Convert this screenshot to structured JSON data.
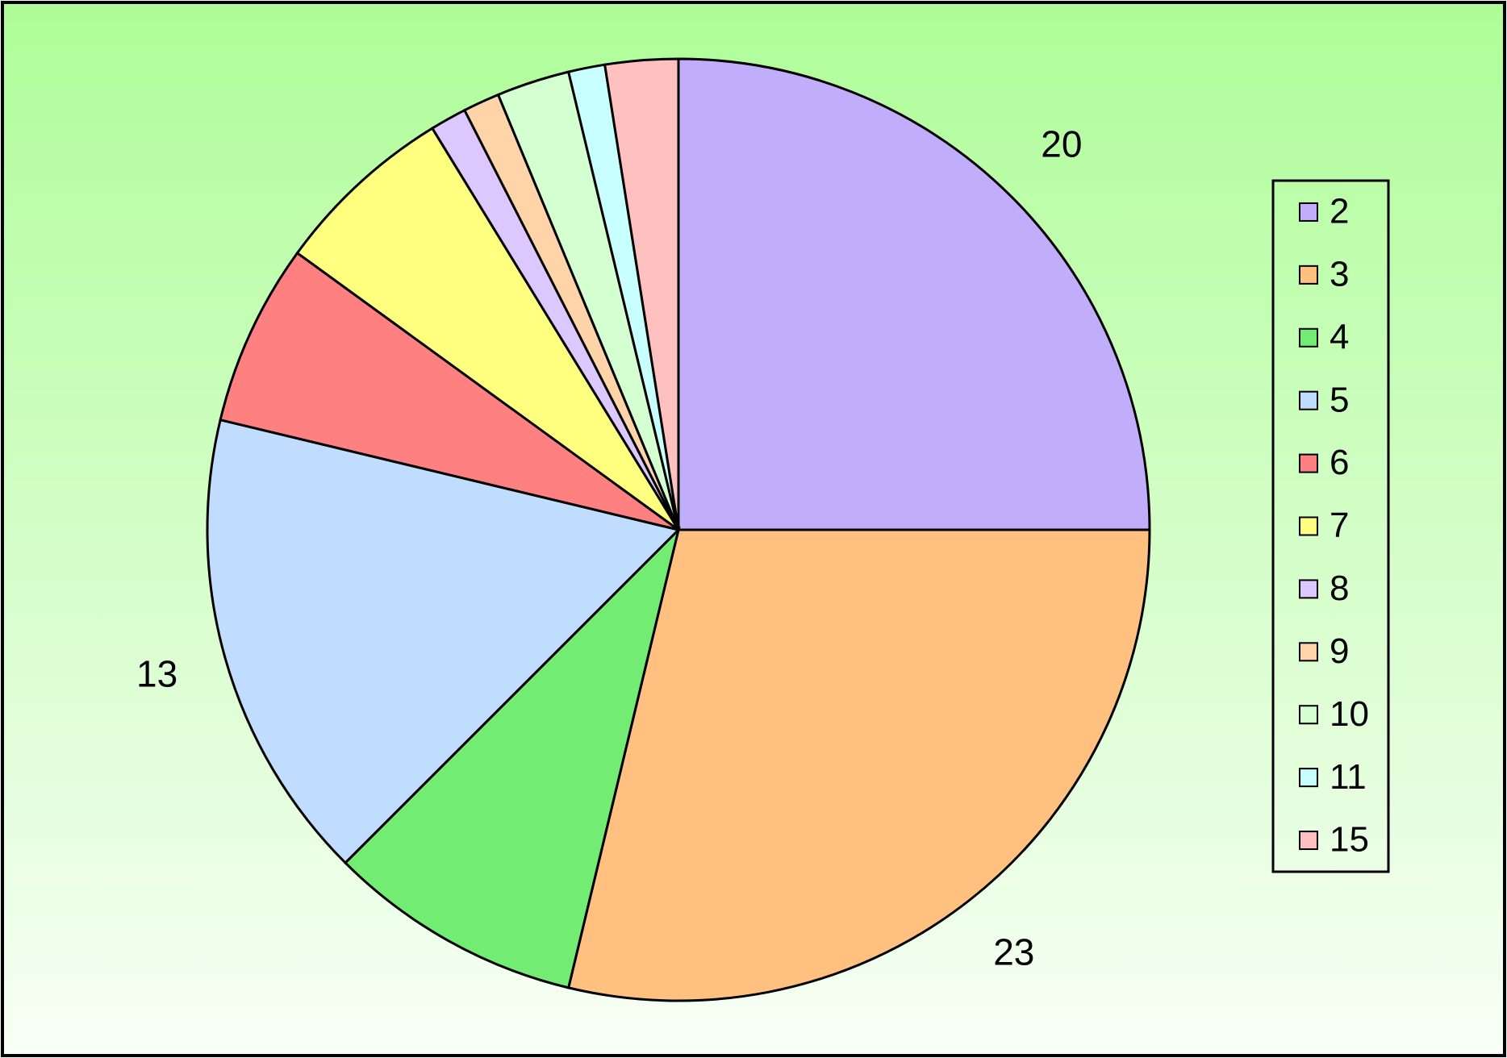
{
  "chart_data": {
    "type": "pie",
    "categories": [
      "2",
      "3",
      "4",
      "5",
      "6",
      "7",
      "8",
      "9",
      "10",
      "11",
      "15"
    ],
    "values": [
      20,
      23,
      7,
      13,
      5,
      5,
      1,
      1,
      2,
      1,
      2
    ],
    "value_labels": [
      "20",
      "23",
      null,
      "13",
      null,
      null,
      null,
      null,
      null,
      null,
      null
    ],
    "colors": [
      "#c0aefa",
      "#ffc080",
      "#72ec72",
      "#c0dcff",
      "#ff8080",
      "#ffff80",
      "#dcc8ff",
      "#ffd4a8",
      "#d4ffd0",
      "#c8ffff",
      "#ffc0c0"
    ],
    "legend": "right"
  }
}
